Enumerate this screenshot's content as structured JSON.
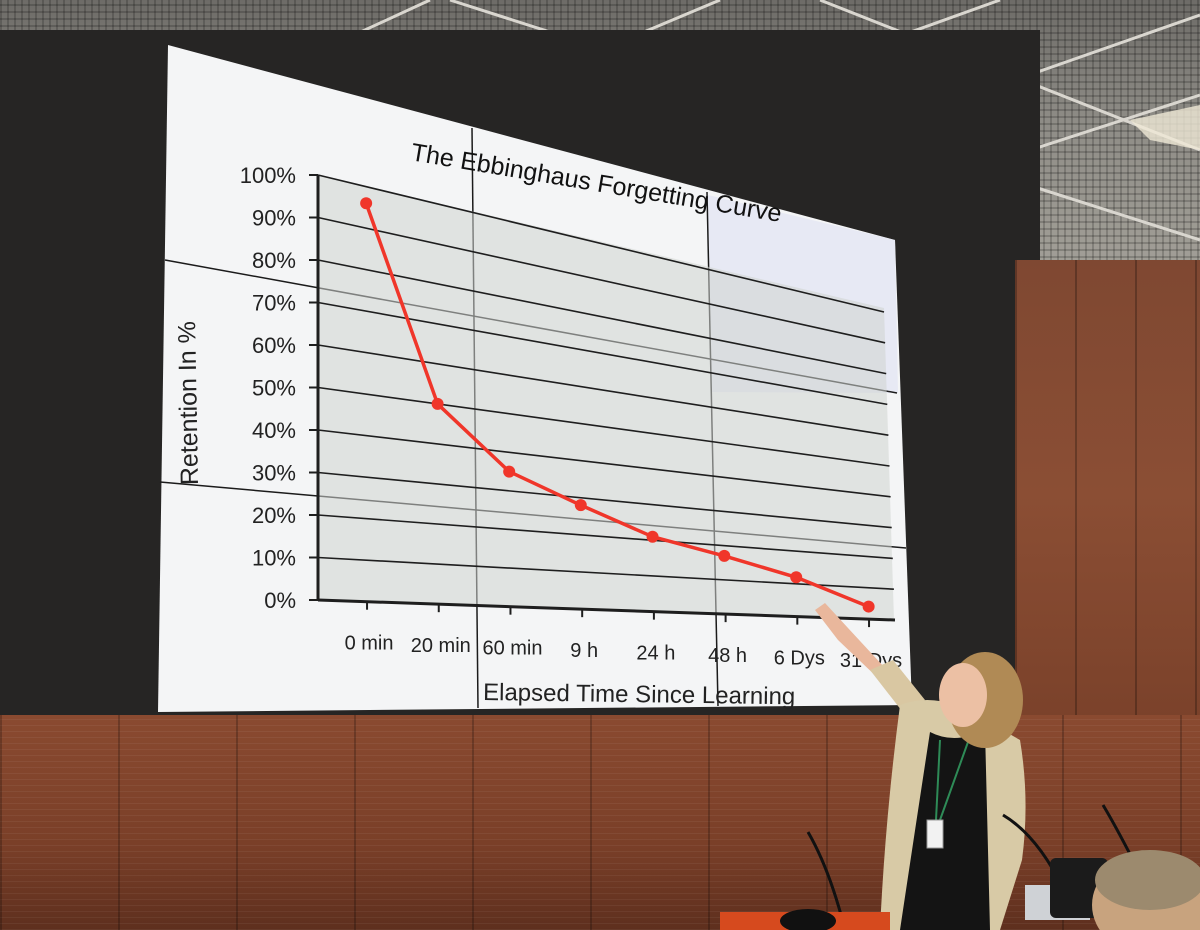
{
  "chart_data": {
    "type": "line",
    "title": "The Ebbinghaus Forgetting Curve",
    "xlabel": "Elapsed Time Since Learning",
    "ylabel": "Retention In %",
    "categories": [
      "0 min",
      "20 min",
      "60 min",
      "9 h",
      "24 h",
      "48 h",
      "6 Dys",
      "31 Dys"
    ],
    "series": [
      {
        "values": [
          96,
          50,
          35,
          28,
          21,
          17,
          12,
          4
        ]
      }
    ],
    "yticks": [
      "0%",
      "10%",
      "20%",
      "30%",
      "40%",
      "50%",
      "60%",
      "70%",
      "80%",
      "90%",
      "100%"
    ],
    "ylim": [
      0,
      100
    ],
    "grid": true,
    "line_color": "#f0362a"
  }
}
